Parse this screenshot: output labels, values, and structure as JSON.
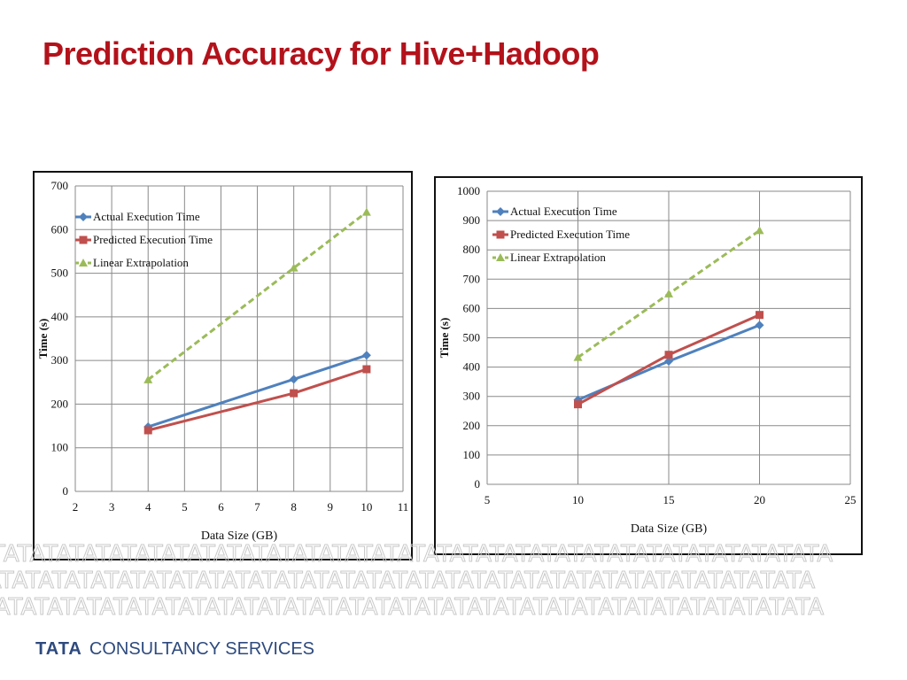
{
  "slide": {
    "title": "Prediction Accuracy for Hive+Hadoop",
    "title_color": "#B3121B"
  },
  "footer": {
    "brand": "TATA",
    "brand_rest": "CONSULTANCY SERVICES",
    "color": "#2E4A7E",
    "pattern_text": "TATATATATATATATATATATATATATATATATATATATATATATATATATATATATATATATA",
    "pattern_color": "#C9C9C9"
  },
  "chart_data": [
    {
      "type": "line",
      "xlabel": "Data Size (GB)",
      "ylabel": "Time (s)",
      "xlim": [
        2,
        11
      ],
      "ylim": [
        0,
        700
      ],
      "xticks": [
        "2",
        "3",
        "4",
        "5",
        "6",
        "7",
        "8",
        "9",
        "10",
        "11"
      ],
      "yticks": [
        "0",
        "100",
        "200",
        "300",
        "400",
        "500",
        "600",
        "700"
      ],
      "grid": true,
      "legend_position": "top-left",
      "x": [
        4,
        8,
        10
      ],
      "series": [
        {
          "name": "Actual Execution Time",
          "values": [
            148,
            257,
            312
          ],
          "color": "#4F81BD",
          "marker": "diamond",
          "dashed": false
        },
        {
          "name": "Predicted Execution Time",
          "values": [
            140,
            225,
            280
          ],
          "color": "#C0504D",
          "marker": "square",
          "dashed": false
        },
        {
          "name": "Linear Extrapolation",
          "values": [
            256,
            512,
            640
          ],
          "color": "#9BBB59",
          "marker": "triangle",
          "dashed": true
        }
      ]
    },
    {
      "type": "line",
      "xlabel": "Data Size (GB)",
      "ylabel": "Time (s)",
      "xlim": [
        5,
        25
      ],
      "ylim": [
        0,
        1000
      ],
      "xticks": [
        "5",
        "10",
        "15",
        "20",
        "25"
      ],
      "yticks": [
        "0",
        "100",
        "200",
        "300",
        "400",
        "500",
        "600",
        "700",
        "800",
        "900",
        "1000"
      ],
      "grid": true,
      "legend_position": "top-left",
      "x": [
        10,
        15,
        20
      ],
      "series": [
        {
          "name": "Actual Execution Time",
          "values": [
            288,
            420,
            543
          ],
          "color": "#4F81BD",
          "marker": "diamond",
          "dashed": false
        },
        {
          "name": "Predicted Execution Time",
          "values": [
            273,
            442,
            578
          ],
          "color": "#C0504D",
          "marker": "square",
          "dashed": false
        },
        {
          "name": "Linear Extrapolation",
          "values": [
            433,
            650,
            866
          ],
          "color": "#9BBB59",
          "marker": "triangle",
          "dashed": true
        }
      ]
    }
  ]
}
